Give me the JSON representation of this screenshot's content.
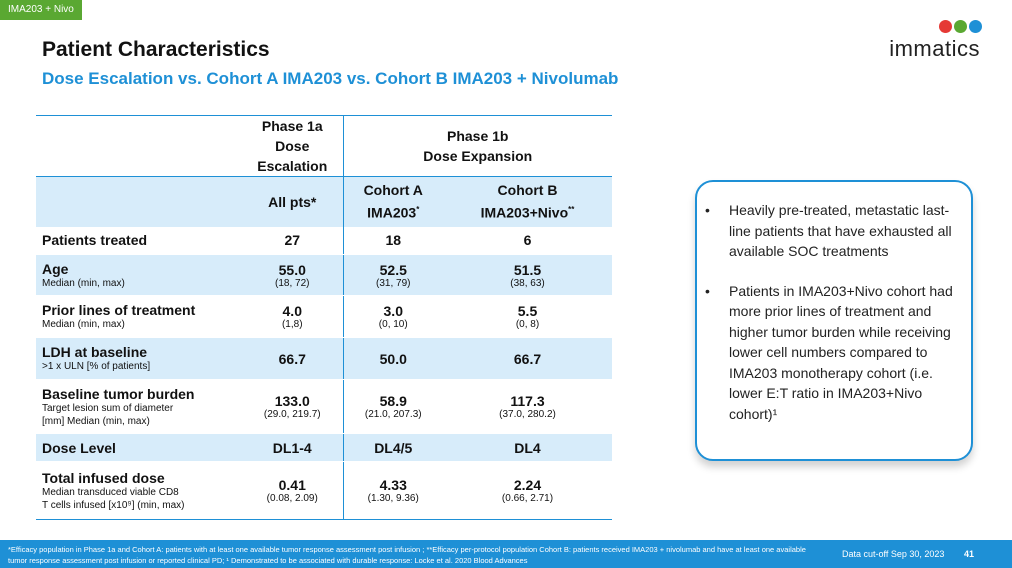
{
  "tag": "IMA203 + Nivo",
  "title": "Patient Characteristics",
  "subtitle": "Dose Escalation vs. Cohort A IMA203 vs. Cohort B IMA203 + Nivolumab",
  "logo": {
    "text": "immatics",
    "colors": [
      "#e53935",
      "#5aa832",
      "#1e90d6"
    ]
  },
  "table": {
    "phase1a": [
      "Phase 1a",
      "Dose Escalation"
    ],
    "phase1b": [
      "Phase 1b",
      "Dose Expansion"
    ],
    "col_all": "All pts*",
    "col_a": [
      "Cohort A",
      "IMA203",
      "*"
    ],
    "col_b": [
      "Cohort B",
      "IMA203+Nivo",
      "**"
    ],
    "rows": [
      {
        "label": "Patients treated",
        "sub": "",
        "v": [
          "27",
          "18",
          "6"
        ],
        "s": [
          "",
          "",
          ""
        ]
      },
      {
        "label": "Age",
        "sub": "Median (min, max)",
        "v": [
          "55.0",
          "52.5",
          "51.5"
        ],
        "s": [
          "(18, 72)",
          "(31, 79)",
          "(38, 63)"
        ]
      },
      {
        "label": "Prior lines of treatment",
        "sub": "Median (min, max)",
        "v": [
          "4.0",
          "3.0",
          "5.5"
        ],
        "s": [
          "(1,8)",
          "(0, 10)",
          "(0, 8)"
        ]
      },
      {
        "label": "LDH at baseline",
        "sub": ">1 x ULN [% of patients]",
        "v": [
          "66.7",
          "50.0",
          "66.7"
        ],
        "s": [
          "",
          "",
          ""
        ]
      },
      {
        "label": "Baseline tumor burden",
        "sub": "Target lesion sum of diameter",
        "sub2": "[mm] Median (min, max)",
        "v": [
          "133.0",
          "58.9",
          "117.3"
        ],
        "s": [
          "(29.0, 219.7)",
          "(21.0, 207.3)",
          "(37.0, 280.2)"
        ]
      },
      {
        "label": "Dose Level",
        "sub": "",
        "v": [
          "DL1-4",
          "DL4/5",
          "DL4"
        ],
        "s": [
          "",
          "",
          ""
        ]
      },
      {
        "label": "Total infused dose",
        "sub": "Median transduced viable CD8",
        "sub2": "T cells infused [x10⁹] (min, max)",
        "v": [
          "0.41",
          "4.33",
          "2.24"
        ],
        "s": [
          "(0.08, 2.09)",
          "(1.30, 9.36)",
          "(0.66, 2.71)"
        ]
      }
    ]
  },
  "notes": [
    "Heavily pre-treated, metastatic last-line patients that have exhausted all available SOC treatments",
    "Patients in IMA203+Nivo cohort had more prior lines of treatment and higher tumor burden while receiving lower cell numbers compared to IMA203 monotherapy cohort  (i.e. lower E:T ratio in IMA203+Nivo cohort)¹"
  ],
  "footer": {
    "footnote": "*Efficacy population in Phase 1a and Cohort A: patients with at least one available tumor response assessment post infusion ; **Efficacy per-protocol population Cohort B: patients received IMA203 + nivolumab and have at least one available tumor response assessment post infusion or reported clinical PD; ¹ Demonstrated to be associated with durable response: Locke et al. 2020 Blood Advances",
    "cutoff": "Data cut-off Sep 30, 2023",
    "page": "41"
  }
}
